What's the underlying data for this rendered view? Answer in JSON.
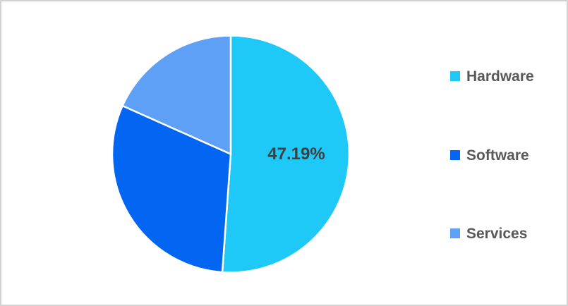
{
  "chart_data": {
    "type": "pie",
    "title": "",
    "legend_position": "right",
    "start_angle_deg": 0,
    "direction": "clockwise",
    "series": [
      {
        "label": "Hardware",
        "value": 47.19,
        "color": "#1ec8f7",
        "data_label": "47.19%"
      },
      {
        "label": "Software",
        "value": 28.2,
        "color": "#0366f3",
        "data_label": ""
      },
      {
        "label": "Services",
        "value": 16.9,
        "color": "#5fa0f7",
        "data_label": ""
      }
    ],
    "shown_data_label": "47.19%",
    "slice_border_color": "#ffffff"
  }
}
